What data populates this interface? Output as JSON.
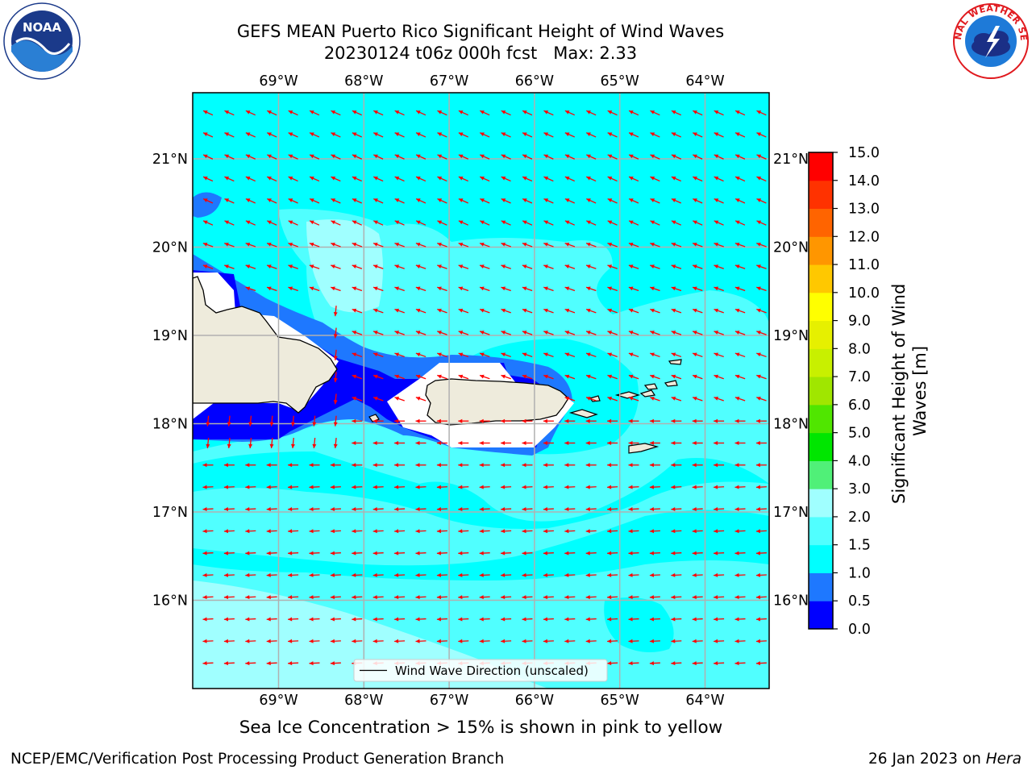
{
  "title": {
    "line1": "GEFS MEAN Puerto Rico Significant Height of Wind Waves",
    "line2": "20230124 t06z 000h fcst   Max: 2.33"
  },
  "map": {
    "lon_labels": [
      "69°W",
      "68°W",
      "67°W",
      "66°W",
      "65°W",
      "64°W"
    ],
    "lat_labels": [
      "21°N",
      "20°N",
      "19°N",
      "18°N",
      "17°N",
      "16°N"
    ],
    "legend_label": "Wind Wave Direction (unscaled)",
    "arrow_color": "#ff0000",
    "land_color": "#eeebdc"
  },
  "colorbar": {
    "label": "Significant Height of Wind Waves [m]",
    "ticks": [
      "0.0",
      "0.5",
      "1.0",
      "1.5",
      "2.0",
      "3.0",
      "4.0",
      "5.0",
      "6.0",
      "7.0",
      "8.0",
      "9.0",
      "10.0",
      "11.0",
      "12.0",
      "13.0",
      "14.0",
      "15.0"
    ],
    "colors": [
      "#0000ff",
      "#1e78ff",
      "#00ffff",
      "#50ffff",
      "#a0ffff",
      "#50f078",
      "#00e600",
      "#50e600",
      "#a0e600",
      "#c8f000",
      "#e6f000",
      "#ffff00",
      "#ffc800",
      "#ff9600",
      "#ff6400",
      "#ff3200",
      "#ff0000"
    ]
  },
  "note": "Sea Ice Concentration > 15% is shown in pink to yellow",
  "footer": {
    "left": "NCEP/EMC/Verification Post Processing Product Generation Branch",
    "right_prefix": "26 Jan 2023 on ",
    "right_host": "Hera"
  },
  "logos": {
    "noaa": "NOAA",
    "nws": "NATIONAL WEATHER SERVICE"
  }
}
